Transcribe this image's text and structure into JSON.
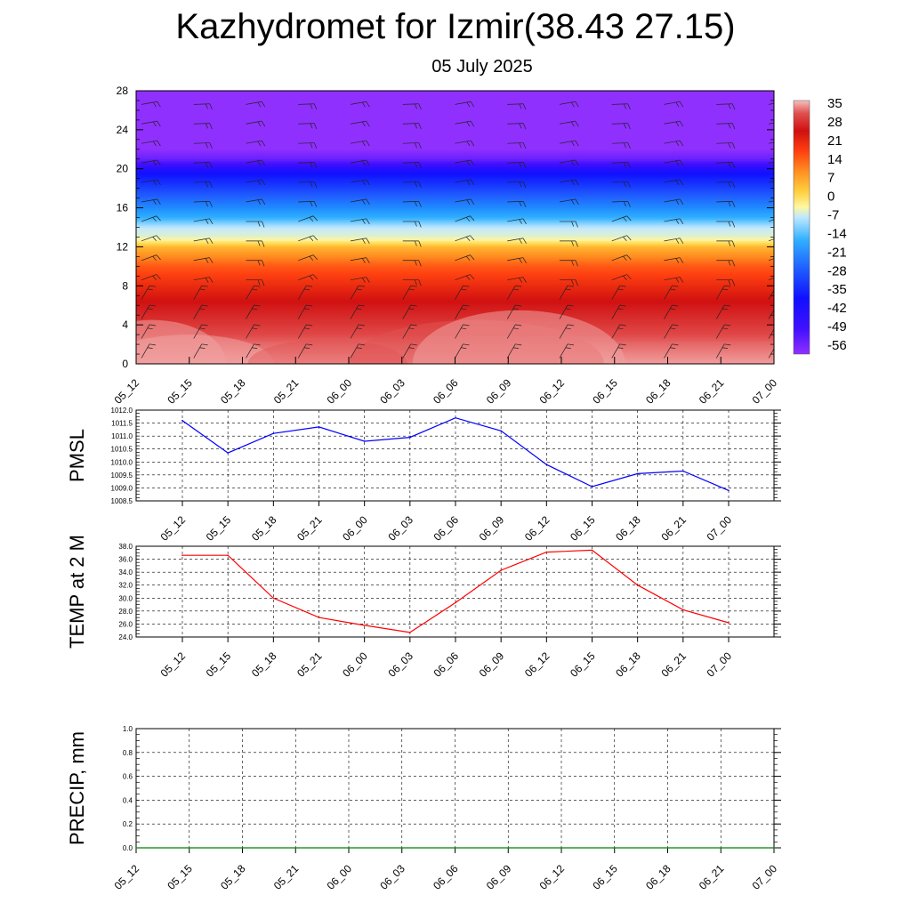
{
  "page": {
    "title": "Kazhydromet for Izmir(38.43 27.15)",
    "subtitle": "05 July 2025"
  },
  "times": [
    "05_12",
    "05_15",
    "05_18",
    "05_21",
    "06_00",
    "06_03",
    "06_06",
    "06_09",
    "06_12",
    "06_15",
    "06_18",
    "06_21",
    "07_00"
  ],
  "chart_data": [
    {
      "type": "heatmap",
      "title": "",
      "xlabel": "",
      "ylabel": "",
      "x": [
        "05_12",
        "05_15",
        "05_18",
        "05_21",
        "06_00",
        "06_03",
        "06_06",
        "06_09",
        "06_12",
        "06_15",
        "06_18",
        "06_21",
        "07_00"
      ],
      "ylim": [
        0,
        28
      ],
      "y_ticks": [
        0,
        4,
        8,
        12,
        16,
        20,
        24,
        28
      ],
      "z_profile": {
        "levels": [
          0,
          2,
          4,
          6,
          8,
          10,
          12,
          13,
          14,
          16,
          18,
          20,
          21,
          22,
          24,
          28
        ],
        "temperature": [
          33,
          30,
          26,
          22,
          17,
          12,
          3,
          -10,
          -14,
          -28,
          -40,
          -52,
          -60,
          -64,
          -64,
          -64
        ]
      },
      "colorbar_labels": [
        "35",
        "28",
        "21",
        "14",
        "7",
        "0",
        "-7",
        "-14",
        "-21",
        "-28",
        "-35",
        "-42",
        "-49",
        "-56"
      ],
      "overlay": "wind barbs",
      "colors": {
        "hot": "#f8c0c0",
        "red": "#d01010",
        "orange": "#ff9020",
        "yellow": "#fff8a0",
        "cyan": "#30b0ff",
        "blue": "#1010ff",
        "violet": "#9030ff"
      }
    },
    {
      "type": "line",
      "ylabel": "PMSL",
      "x": [
        "05_12",
        "05_15",
        "05_18",
        "05_21",
        "06_00",
        "06_03",
        "06_06",
        "06_09",
        "06_12",
        "06_15",
        "06_18",
        "06_21",
        "07_00"
      ],
      "series": [
        {
          "color": "#0000ff",
          "values": [
            1011.6,
            1010.35,
            1011.1,
            1011.35,
            1010.8,
            1010.95,
            1011.7,
            1011.2,
            1009.9,
            1009.05,
            1009.55,
            1009.65,
            1008.9
          ]
        }
      ],
      "ylim": [
        1008.5,
        1012.0
      ],
      "y_ticks": [
        "1008.5",
        "1009.0",
        "1009.5",
        "1010.0",
        "1010.5",
        "1011.0",
        "1011.5",
        "1012.0"
      ],
      "grid": true
    },
    {
      "type": "line",
      "ylabel": "TEMP at 2 M",
      "x": [
        "05_12",
        "05_15",
        "05_18",
        "05_21",
        "06_00",
        "06_03",
        "06_06",
        "06_09",
        "06_12",
        "06_15",
        "06_18",
        "06_21",
        "07_00"
      ],
      "series": [
        {
          "color": "#ff0000",
          "values": [
            36.6,
            36.6,
            30.0,
            27.0,
            25.8,
            24.7,
            29.3,
            34.3,
            37.1,
            37.4,
            32.0,
            28.2,
            26.2
          ]
        }
      ],
      "ylim": [
        24.0,
        38.0
      ],
      "y_ticks": [
        "24.0",
        "26.0",
        "28.0",
        "30.0",
        "32.0",
        "34.0",
        "36.0",
        "38.0"
      ],
      "grid": true
    },
    {
      "type": "line",
      "ylabel": "PRECIP, mm",
      "x": [
        "05_12",
        "05_15",
        "05_18",
        "05_21",
        "06_00",
        "06_03",
        "06_06",
        "06_09",
        "06_12",
        "06_15",
        "06_18",
        "06_21",
        "07_00"
      ],
      "series": [
        {
          "color": "#008000",
          "values": [
            0,
            0,
            0,
            0,
            0,
            0,
            0,
            0,
            0,
            0,
            0,
            0,
            0
          ]
        }
      ],
      "ylim": [
        0.0,
        1.0
      ],
      "y_ticks": [
        "0.0",
        "0.2",
        "0.4",
        "0.6",
        "0.8",
        "1.0"
      ],
      "grid": true
    }
  ]
}
